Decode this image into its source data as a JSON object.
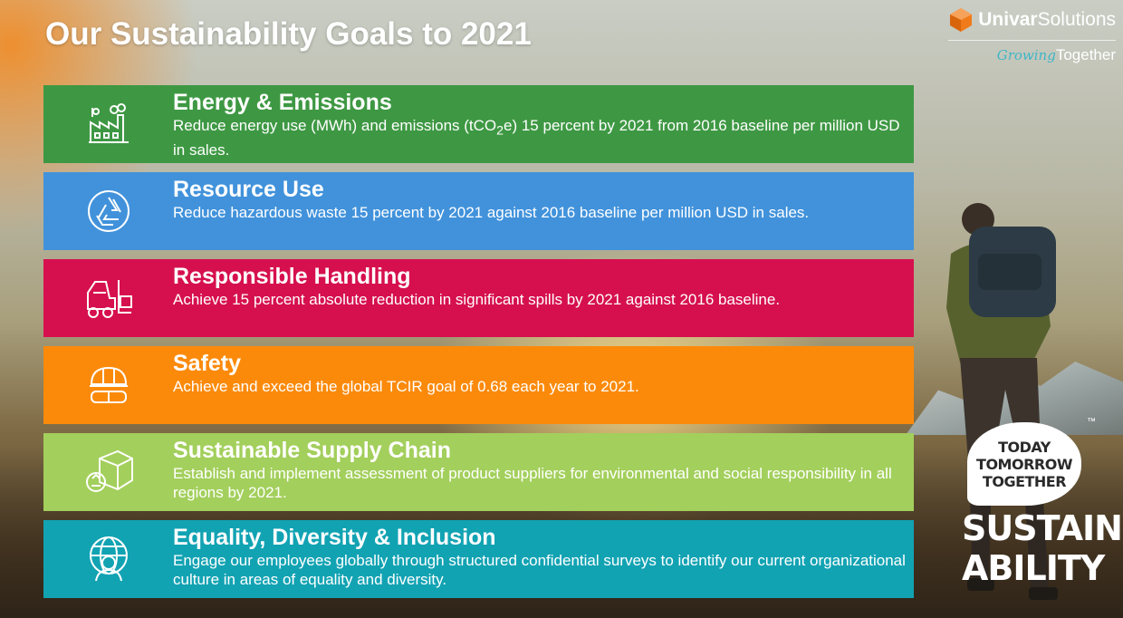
{
  "slide": {
    "title": "Our Sustainability Goals to 2021"
  },
  "brand": {
    "name_bold": "Univar",
    "name_regular": "Solutions",
    "tagline_script": "Growing",
    "tagline": "Together"
  },
  "goals": [
    {
      "icon": "factory-icon",
      "color": "#3e9843",
      "title": "Energy & Emissions",
      "desc_before": "Reduce energy use (MWh) and emissions (tCO",
      "desc_sub": "2",
      "desc_after": "e) 15 percent by 2021 from 2016 baseline per million USD in sales."
    },
    {
      "icon": "recycle-icon",
      "color": "#4192db",
      "title": "Resource Use",
      "desc": "Reduce hazardous waste 15 percent by 2021 against 2016 baseline per million USD in sales."
    },
    {
      "icon": "forklift-icon",
      "color": "#d6104e",
      "title": "Responsible Handling",
      "desc": "Achieve 15 percent absolute reduction in significant spills by 2021 against 2016 baseline."
    },
    {
      "icon": "hard-hat-goggles-icon",
      "color": "#fb8a0b",
      "title": "Safety",
      "desc": "Achieve and exceed the global TCIR goal of 0.68 each year to 2021."
    },
    {
      "icon": "recyclable-box-icon",
      "color": "#a3cf5c",
      "title": "Sustainable Supply Chain",
      "desc": "Establish and implement assessment of product suppliers for environmental and social responsibility in all regions by 2021."
    },
    {
      "icon": "globe-person-icon",
      "color": "#12a3b3",
      "title": "Equality, Diversity & Inclusion",
      "desc": "Engage our employees globally through structured confidential surveys to identify our current organizational culture in areas of equality and diversity."
    }
  ],
  "sustainability_logo": {
    "line1": "TODAY",
    "line2": "TOMORROW",
    "line3": "TOGETHER",
    "trademark": "™",
    "word1": "SUSTAIN",
    "word2": "ABILITY"
  }
}
